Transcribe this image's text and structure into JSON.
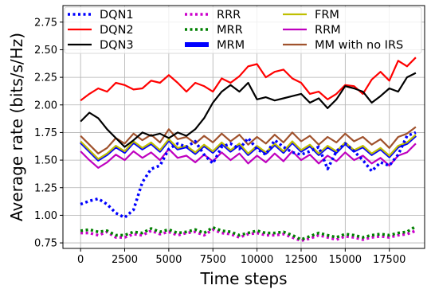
{
  "chart_data": {
    "type": "line",
    "title": "",
    "xlabel": "Time steps",
    "ylabel": "Average rate (bits/s/Hz)",
    "xlim": [
      -1000,
      19500
    ],
    "ylim": [
      0.7,
      2.9
    ],
    "xticks": [
      0,
      2500,
      5000,
      7500,
      10000,
      12500,
      15000,
      17500
    ],
    "yticks": [
      0.75,
      1.0,
      1.25,
      1.5,
      1.75,
      2.0,
      2.25,
      2.5,
      2.75
    ],
    "xtick_labels": [
      "0",
      "2500",
      "5000",
      "7500",
      "10000",
      "12500",
      "15000",
      "17500"
    ],
    "ytick_labels": [
      "0.75",
      "1.00",
      "1.25",
      "1.50",
      "1.75",
      "2.00",
      "2.25",
      "2.50",
      "2.75"
    ],
    "grid": true,
    "legend": {
      "location": "top",
      "columns": 3
    },
    "series": [
      {
        "name": "DQN1",
        "color": "#0000ff",
        "style": "dotted",
        "x": [
          0,
          500,
          1000,
          1500,
          2000,
          2500,
          3000,
          3500,
          4000,
          4500,
          5000,
          5500,
          6000,
          6500,
          7000,
          7500,
          8000,
          8500,
          9000,
          9500,
          10000,
          10500,
          11000,
          11500,
          12000,
          12500,
          13000,
          13500,
          14000,
          14500,
          15000,
          15500,
          16000,
          16500,
          17000,
          17500,
          18000,
          18500,
          19000
        ],
        "y": [
          1.1,
          1.13,
          1.15,
          1.1,
          1.02,
          0.98,
          1.05,
          1.3,
          1.42,
          1.45,
          1.6,
          1.65,
          1.62,
          1.67,
          1.55,
          1.47,
          1.62,
          1.65,
          1.6,
          1.7,
          1.6,
          1.55,
          1.68,
          1.62,
          1.57,
          1.55,
          1.58,
          1.62,
          1.42,
          1.58,
          1.65,
          1.58,
          1.5,
          1.4,
          1.48,
          1.45,
          1.55,
          1.72,
          1.75
        ]
      },
      {
        "name": "DQN2",
        "color": "#ff0000",
        "style": "solid",
        "x": [
          0,
          500,
          1000,
          1500,
          2000,
          2500,
          3000,
          3500,
          4000,
          4500,
          5000,
          5500,
          6000,
          6500,
          7000,
          7500,
          8000,
          8500,
          9000,
          9500,
          10000,
          10500,
          11000,
          11500,
          12000,
          12500,
          13000,
          13500,
          14000,
          14500,
          15000,
          15500,
          16000,
          16500,
          17000,
          17500,
          18000,
          18500,
          19000
        ],
        "y": [
          2.04,
          2.1,
          2.15,
          2.12,
          2.2,
          2.18,
          2.14,
          2.15,
          2.22,
          2.2,
          2.27,
          2.2,
          2.12,
          2.2,
          2.17,
          2.12,
          2.24,
          2.2,
          2.26,
          2.35,
          2.37,
          2.25,
          2.3,
          2.32,
          2.24,
          2.2,
          2.1,
          2.12,
          2.05,
          2.1,
          2.18,
          2.17,
          2.1,
          2.23,
          2.3,
          2.22,
          2.4,
          2.35,
          2.43
        ]
      },
      {
        "name": "DQN3",
        "color": "#000000",
        "style": "solid",
        "x": [
          0,
          500,
          1000,
          1500,
          2000,
          2500,
          3000,
          3500,
          4000,
          4500,
          5000,
          5500,
          6000,
          6500,
          7000,
          7500,
          8000,
          8500,
          9000,
          9500,
          10000,
          10500,
          11000,
          11500,
          12000,
          12500,
          13000,
          13500,
          14000,
          14500,
          15000,
          15500,
          16000,
          16500,
          17000,
          17500,
          18000,
          18500,
          19000
        ],
        "y": [
          1.85,
          1.93,
          1.88,
          1.78,
          1.7,
          1.62,
          1.68,
          1.75,
          1.72,
          1.74,
          1.7,
          1.75,
          1.72,
          1.78,
          1.88,
          2.02,
          2.12,
          2.18,
          2.12,
          2.2,
          2.05,
          2.07,
          2.04,
          2.06,
          2.08,
          2.1,
          2.02,
          2.06,
          1.97,
          2.05,
          2.17,
          2.15,
          2.12,
          2.02,
          2.08,
          2.15,
          2.12,
          2.25,
          2.29
        ]
      },
      {
        "name": "RRR",
        "color": "#cc00cc",
        "style": "dotted",
        "x": [
          0,
          500,
          1000,
          1500,
          2000,
          2500,
          3000,
          3500,
          4000,
          4500,
          5000,
          5500,
          6000,
          6500,
          7000,
          7500,
          8000,
          8500,
          9000,
          9500,
          10000,
          10500,
          11000,
          11500,
          12000,
          12500,
          13000,
          13500,
          14000,
          14500,
          15000,
          15500,
          16000,
          16500,
          17000,
          17500,
          18000,
          18500,
          19000
        ],
        "y": [
          0.84,
          0.84,
          0.82,
          0.85,
          0.8,
          0.8,
          0.83,
          0.82,
          0.86,
          0.83,
          0.85,
          0.82,
          0.84,
          0.85,
          0.82,
          0.87,
          0.84,
          0.83,
          0.8,
          0.83,
          0.84,
          0.82,
          0.82,
          0.83,
          0.8,
          0.77,
          0.79,
          0.82,
          0.8,
          0.78,
          0.81,
          0.8,
          0.78,
          0.8,
          0.81,
          0.8,
          0.82,
          0.83,
          0.86
        ]
      },
      {
        "name": "MRR",
        "color": "#008000",
        "style": "dotted",
        "x": [
          0,
          500,
          1000,
          1500,
          2000,
          2500,
          3000,
          3500,
          4000,
          4500,
          5000,
          5500,
          6000,
          6500,
          7000,
          7500,
          8000,
          8500,
          9000,
          9500,
          10000,
          10500,
          11000,
          11500,
          12000,
          12500,
          13000,
          13500,
          14000,
          14500,
          15000,
          15500,
          16000,
          16500,
          17000,
          17500,
          18000,
          18500,
          19000
        ],
        "y": [
          0.86,
          0.87,
          0.85,
          0.86,
          0.82,
          0.82,
          0.85,
          0.84,
          0.88,
          0.85,
          0.87,
          0.84,
          0.85,
          0.87,
          0.84,
          0.89,
          0.86,
          0.85,
          0.82,
          0.84,
          0.86,
          0.84,
          0.84,
          0.85,
          0.82,
          0.78,
          0.81,
          0.84,
          0.82,
          0.8,
          0.83,
          0.82,
          0.8,
          0.82,
          0.83,
          0.82,
          0.84,
          0.85,
          0.9
        ]
      },
      {
        "name": "MRM",
        "color": "#0000ff",
        "style": "solid-thick",
        "x": [
          0,
          500,
          1000,
          1500,
          2000,
          2500,
          3000,
          3500,
          4000,
          4500,
          5000,
          5500,
          6000,
          6500,
          7000,
          7500,
          8000,
          8500,
          9000,
          9500,
          10000,
          10500,
          11000,
          11500,
          12000,
          12500,
          13000,
          13500,
          14000,
          14500,
          15000,
          15500,
          16000,
          16500,
          17000,
          17500,
          18000,
          18500,
          19000
        ],
        "y": [
          1.66,
          1.58,
          1.5,
          1.55,
          1.62,
          1.57,
          1.66,
          1.6,
          1.65,
          1.58,
          1.68,
          1.6,
          1.62,
          1.56,
          1.63,
          1.57,
          1.65,
          1.58,
          1.64,
          1.55,
          1.62,
          1.56,
          1.64,
          1.57,
          1.66,
          1.58,
          1.63,
          1.55,
          1.62,
          1.57,
          1.65,
          1.58,
          1.62,
          1.55,
          1.6,
          1.53,
          1.62,
          1.65,
          1.72
        ]
      },
      {
        "name": "FRM",
        "color": "#bfbf00",
        "style": "solid",
        "x": [
          0,
          500,
          1000,
          1500,
          2000,
          2500,
          3000,
          3500,
          4000,
          4500,
          5000,
          5500,
          6000,
          6500,
          7000,
          7500,
          8000,
          8500,
          9000,
          9500,
          10000,
          10500,
          11000,
          11500,
          12000,
          12500,
          13000,
          13500,
          14000,
          14500,
          15000,
          15500,
          16000,
          16500,
          17000,
          17500,
          18000,
          18500,
          19000
        ],
        "y": [
          1.67,
          1.59,
          1.51,
          1.56,
          1.63,
          1.58,
          1.67,
          1.61,
          1.66,
          1.59,
          1.69,
          1.61,
          1.63,
          1.57,
          1.64,
          1.58,
          1.66,
          1.59,
          1.65,
          1.56,
          1.63,
          1.57,
          1.65,
          1.58,
          1.67,
          1.59,
          1.64,
          1.56,
          1.63,
          1.58,
          1.66,
          1.59,
          1.63,
          1.56,
          1.61,
          1.54,
          1.63,
          1.66,
          1.73
        ]
      },
      {
        "name": "RRM",
        "color": "#bf00bf",
        "style": "solid",
        "x": [
          0,
          500,
          1000,
          1500,
          2000,
          2500,
          3000,
          3500,
          4000,
          4500,
          5000,
          5500,
          6000,
          6500,
          7000,
          7500,
          8000,
          8500,
          9000,
          9500,
          10000,
          10500,
          11000,
          11500,
          12000,
          12500,
          13000,
          13500,
          14000,
          14500,
          15000,
          15500,
          16000,
          16500,
          17000,
          17500,
          18000,
          18500,
          19000
        ],
        "y": [
          1.58,
          1.5,
          1.43,
          1.48,
          1.55,
          1.5,
          1.58,
          1.52,
          1.57,
          1.5,
          1.6,
          1.52,
          1.54,
          1.48,
          1.55,
          1.49,
          1.57,
          1.5,
          1.56,
          1.47,
          1.54,
          1.48,
          1.56,
          1.49,
          1.58,
          1.5,
          1.55,
          1.47,
          1.54,
          1.49,
          1.57,
          1.5,
          1.54,
          1.47,
          1.52,
          1.45,
          1.54,
          1.57,
          1.65
        ]
      },
      {
        "name": "MM with no IRS",
        "color": "#a0522d",
        "style": "solid",
        "x": [
          0,
          500,
          1000,
          1500,
          2000,
          2500,
          3000,
          3500,
          4000,
          4500,
          5000,
          5500,
          6000,
          6500,
          7000,
          7500,
          8000,
          8500,
          9000,
          9500,
          10000,
          10500,
          11000,
          11500,
          12000,
          12500,
          13000,
          13500,
          14000,
          14500,
          15000,
          15500,
          16000,
          16500,
          17000,
          17500,
          18000,
          18500,
          19000
        ],
        "y": [
          1.72,
          1.64,
          1.56,
          1.61,
          1.7,
          1.65,
          1.74,
          1.68,
          1.73,
          1.66,
          1.78,
          1.69,
          1.71,
          1.65,
          1.72,
          1.66,
          1.74,
          1.67,
          1.73,
          1.64,
          1.71,
          1.65,
          1.73,
          1.66,
          1.75,
          1.67,
          1.72,
          1.64,
          1.71,
          1.66,
          1.74,
          1.67,
          1.71,
          1.64,
          1.69,
          1.61,
          1.71,
          1.74,
          1.8
        ]
      }
    ]
  }
}
